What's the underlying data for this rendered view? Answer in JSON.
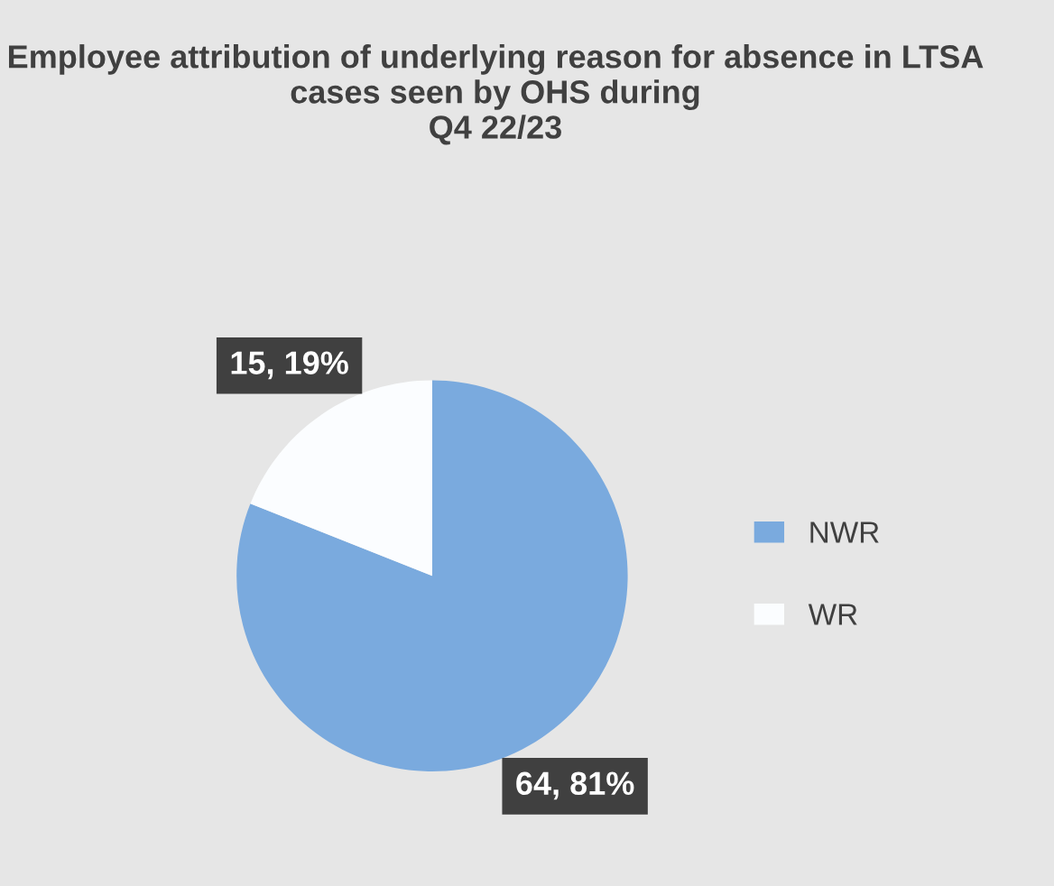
{
  "chart_data": {
    "type": "pie",
    "title": "Employee attribution of underlying reason for absence in LTSA cases seen by OHS during\nQ4 22/23",
    "categories": [
      "NWR",
      "WR"
    ],
    "values": [
      64,
      15
    ],
    "value_labels": [
      "64, 81%",
      "15, 19%"
    ],
    "colors": [
      "#7aaade",
      "#fbfdff"
    ],
    "legend": "right"
  }
}
